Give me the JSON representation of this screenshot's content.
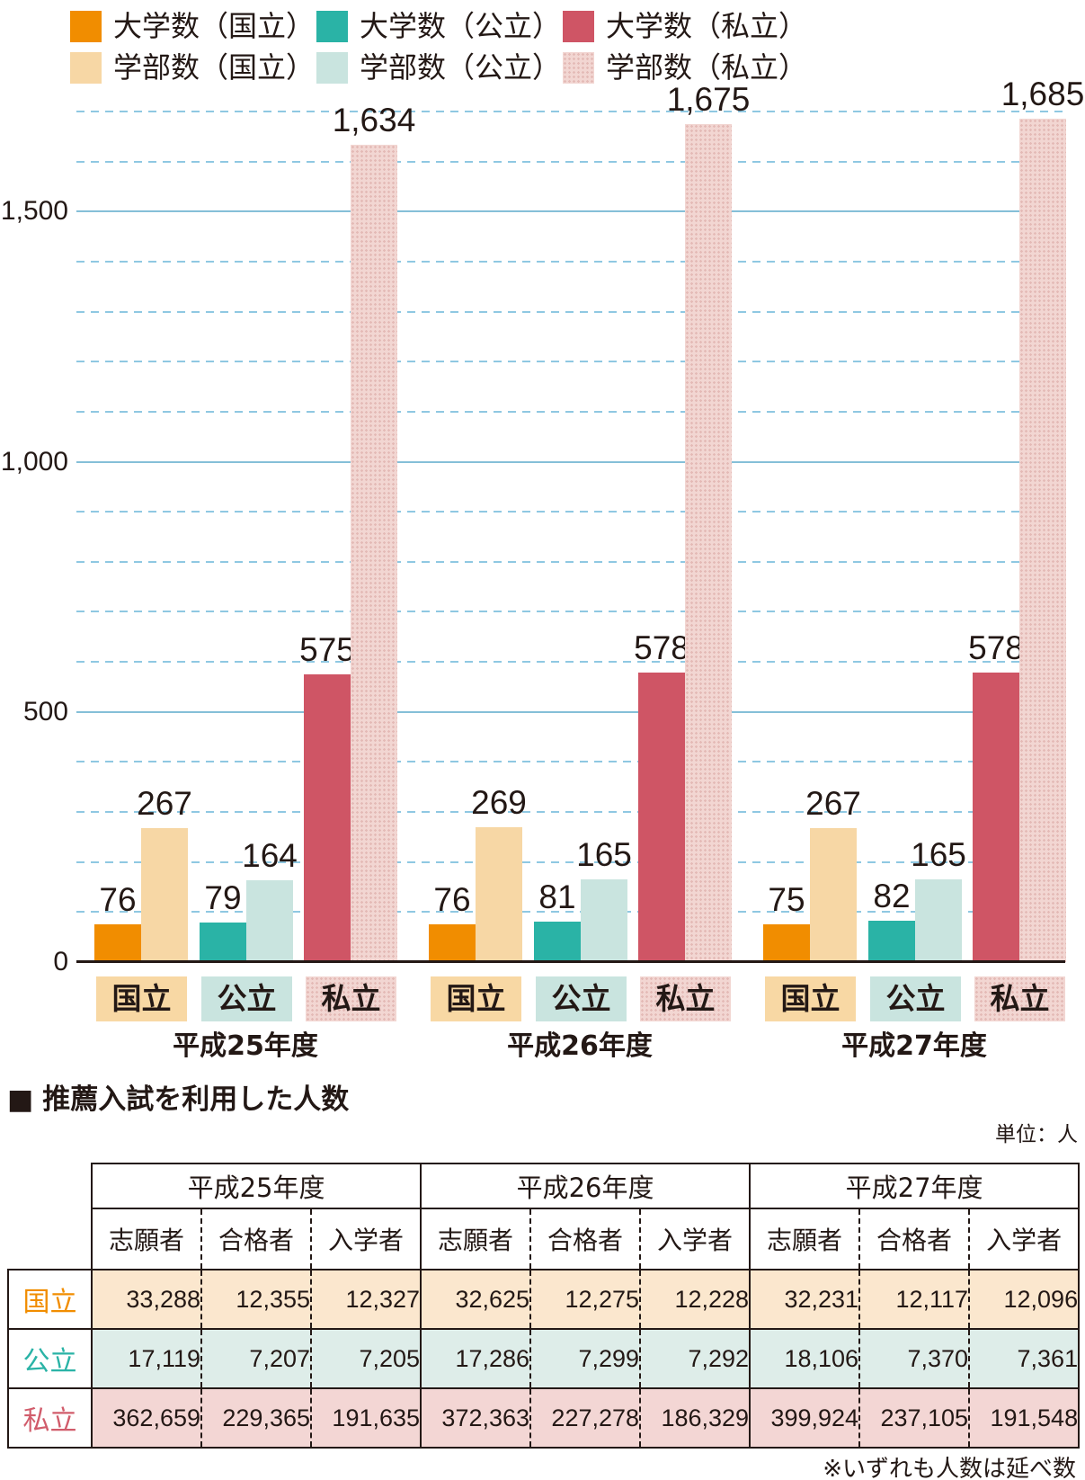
{
  "legend": {
    "items": [
      {
        "label": "大学数（国立）",
        "color": "#F18D00",
        "pattern": false
      },
      {
        "label": "大学数（公立）",
        "color": "#2AB3A6",
        "pattern": false
      },
      {
        "label": "大学数（私立）",
        "color": "#CF5565",
        "pattern": false
      },
      {
        "label": "学部数（国立）",
        "color": "#F7D7A5",
        "pattern": false
      },
      {
        "label": "学部数（公立）",
        "color": "#C9E4DF",
        "pattern": false
      },
      {
        "label": "学部数（私立）",
        "color": "#F2D6D2",
        "pattern": true
      }
    ]
  },
  "chart_data": {
    "type": "bar",
    "title": "",
    "years": [
      "平成25年度",
      "平成26年度",
      "平成27年度"
    ],
    "categories": [
      "国立",
      "公立",
      "私立"
    ],
    "series": [
      {
        "name": "大学数（国立）",
        "category": "国立",
        "kind": "大学数",
        "values": [
          76,
          76,
          75
        ]
      },
      {
        "name": "学部数（国立）",
        "category": "国立",
        "kind": "学部数",
        "values": [
          267,
          269,
          267
        ]
      },
      {
        "name": "大学数（公立）",
        "category": "公立",
        "kind": "大学数",
        "values": [
          79,
          81,
          82
        ]
      },
      {
        "name": "学部数（公立）",
        "category": "公立",
        "kind": "学部数",
        "values": [
          164,
          165,
          165
        ]
      },
      {
        "name": "大学数（私立）",
        "category": "私立",
        "kind": "大学数",
        "values": [
          575,
          578,
          578
        ]
      },
      {
        "name": "学部数（私立）",
        "category": "私立",
        "kind": "学部数",
        "values": [
          1634,
          1675,
          1685
        ]
      }
    ],
    "values": {
      "大学数": {
        "国立": [
          76,
          76,
          75
        ],
        "公立": [
          79,
          81,
          82
        ],
        "私立": [
          575,
          578,
          578
        ]
      },
      "学部数": {
        "国立": [
          267,
          269,
          267
        ],
        "公立": [
          164,
          165,
          165
        ],
        "私立": [
          1634,
          1675,
          1685
        ]
      }
    },
    "ylim": [
      0,
      1750
    ],
    "yticks": [
      {
        "value": 0,
        "label": "0"
      },
      {
        "value": 500,
        "label": "500"
      },
      {
        "value": 1000,
        "label": "1,000"
      },
      {
        "value": 1500,
        "label": "1,500"
      }
    ],
    "grid": {
      "minor_step": 100,
      "minor_style": "dashed",
      "major_step": 500,
      "major_style": "solid"
    },
    "legend_position": "top-left",
    "colors": {
      "国立": {
        "大学数": "#F18D00",
        "学部数": "#F7D7A5"
      },
      "公立": {
        "大学数": "#2AB3A6",
        "学部数": "#C9E4DF"
      },
      "私立": {
        "大学数": "#CF5565",
        "学部数": "#F2D6D2"
      }
    },
    "category_box_colors": {
      "国立": "#F8D8A4",
      "公立": "#C9E4DF",
      "私立": "#F2D6D2"
    }
  },
  "table_section": {
    "marker": "■",
    "heading": "推薦入試を利用した人数",
    "unit_label": "単位：人",
    "table": {
      "year_headers": [
        "平成25年度",
        "平成26年度",
        "平成27年度"
      ],
      "sub_headers": [
        "志願者",
        "合格者",
        "入学者"
      ],
      "rows": [
        {
          "label": "国立",
          "label_color": "#F18D00",
          "row_bg": "#FBE7CE",
          "values": [
            [
              "33,288",
              "12,355",
              "12,327"
            ],
            [
              "32,625",
              "12,275",
              "12,228"
            ],
            [
              "32,231",
              "12,117",
              "12,096"
            ]
          ]
        },
        {
          "label": "公立",
          "label_color": "#2AB3A6",
          "row_bg": "#DEEDE9",
          "values": [
            [
              "17,119",
              "7,207",
              "7,205"
            ],
            [
              "17,286",
              "7,299",
              "7,292"
            ],
            [
              "18,106",
              "7,370",
              "7,361"
            ]
          ]
        },
        {
          "label": "私立",
          "label_color": "#D15C6B",
          "row_bg": "#F3D6D4",
          "values": [
            [
              "362,659",
              "229,365",
              "191,635"
            ],
            [
              "372,363",
              "227,278",
              "186,329"
            ],
            [
              "399,924",
              "237,105",
              "191,548"
            ]
          ]
        }
      ]
    },
    "footnote": "※いずれも人数は延べ数"
  }
}
